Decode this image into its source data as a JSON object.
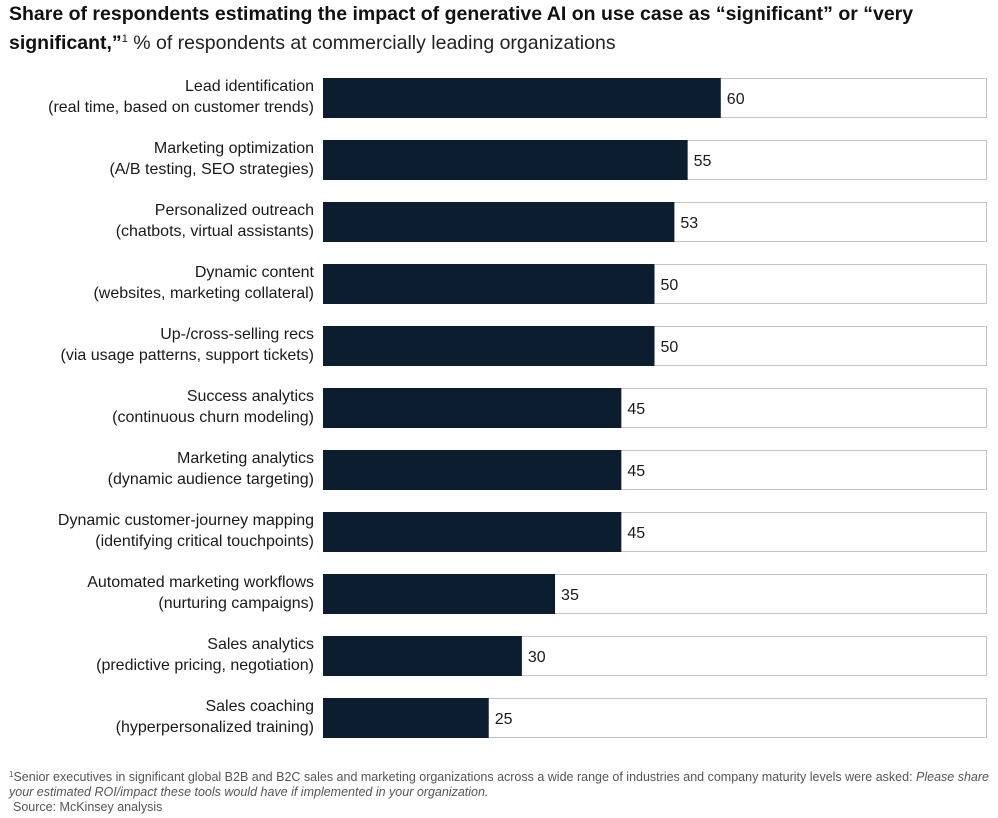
{
  "header": {
    "title": "Share of respondents estimating the impact of generative AI on use case as “significant” or “very significant,”",
    "footnote_marker": "1",
    "subtitle": "% of respondents at commercially leading organizations"
  },
  "chart_data": {
    "type": "bar",
    "orientation": "horizontal",
    "categories": [
      [
        "Lead identification",
        "(real time, based on customer trends)"
      ],
      [
        "Marketing optimization",
        "(A/B testing, SEO strategies)"
      ],
      [
        "Personalized outreach",
        "(chatbots, virtual assistants)"
      ],
      [
        "Dynamic content",
        "(websites, marketing collateral)"
      ],
      [
        "Up-/cross-selling recs",
        "(via usage patterns, support tickets)"
      ],
      [
        "Success analytics",
        "(continuous churn modeling)"
      ],
      [
        "Marketing analytics",
        "(dynamic audience targeting)"
      ],
      [
        "Dynamic customer-journey mapping",
        "(identifying critical touchpoints)"
      ],
      [
        "Automated marketing workflows",
        "(nurturing campaigns)"
      ],
      [
        "Sales analytics",
        "(predictive pricing, negotiation)"
      ],
      [
        "Sales coaching",
        "(hyperpersonalized training)"
      ]
    ],
    "values": [
      60,
      55,
      53,
      50,
      50,
      45,
      45,
      45,
      35,
      30,
      25
    ],
    "xlim": [
      0,
      100
    ],
    "grid": false,
    "legend": "none",
    "colors": {
      "bar": "#0b1d2e",
      "track_border": "#c4c4c4",
      "track_fill": "#ffffff"
    }
  },
  "footer": {
    "footnote_marker": "1",
    "footnote_text": "Senior executives in significant global B2B and B2C sales and marketing organizations across a wide range of industries and company maturity levels were asked: ",
    "footnote_question": "Please share your estimated ROI/impact these tools would have if implemented in your organization.",
    "source": "Source: McKinsey analysis"
  }
}
